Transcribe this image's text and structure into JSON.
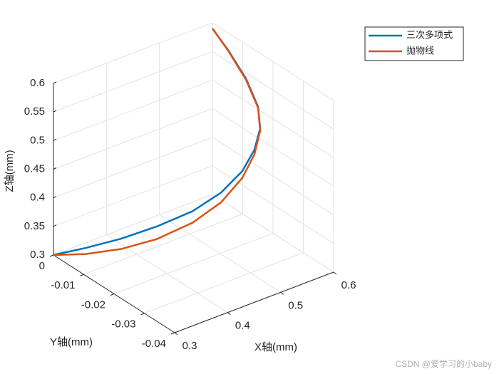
{
  "chart_data": {
    "type": "line3d",
    "xlabel": "X轴(mm)",
    "ylabel": "Y轴(mm)",
    "zlabel": "Z轴(mm)",
    "xlim": [
      0.3,
      0.6
    ],
    "ylim": [
      -0.04,
      0
    ],
    "zlim": [
      0.3,
      0.6
    ],
    "xticks": [
      0.3,
      0.4,
      0.5,
      0.6
    ],
    "yticks": [
      0,
      -0.01,
      -0.02,
      -0.03,
      -0.04
    ],
    "zticks": [
      0.3,
      0.35,
      0.4,
      0.45,
      0.5,
      0.55,
      0.6
    ],
    "grid": true,
    "legend": "top-right",
    "series": [
      {
        "name": "三次多项式",
        "color": "#0072bd",
        "x": [
          0.3,
          0.324,
          0.351,
          0.378,
          0.408,
          0.435,
          0.462,
          0.486,
          0.51,
          0.534,
          0.558,
          0.579,
          0.6
        ],
        "y": [
          0,
          -0.0064,
          -0.0134,
          -0.0205,
          -0.027,
          -0.0317,
          -0.034,
          -0.0338,
          -0.0315,
          -0.0266,
          -0.0184,
          -0.0088,
          0
        ],
        "z": [
          0.3,
          0.3256,
          0.356,
          0.392,
          0.43,
          0.469,
          0.505,
          0.533,
          0.554,
          0.567,
          0.58,
          0.59,
          0.59
        ]
      },
      {
        "name": "抛物线",
        "color": "#d95319",
        "x": [
          0.3,
          0.324,
          0.351,
          0.378,
          0.408,
          0.435,
          0.462,
          0.486,
          0.51,
          0.534,
          0.558,
          0.579,
          0.6
        ],
        "y": [
          0,
          -0.0064,
          -0.0134,
          -0.0205,
          -0.027,
          -0.0317,
          -0.034,
          -0.0338,
          -0.0315,
          -0.0266,
          -0.0184,
          -0.0088,
          0
        ],
        "z": [
          0.3,
          0.315,
          0.338,
          0.37,
          0.41,
          0.452,
          0.493,
          0.525,
          0.55,
          0.565,
          0.578,
          0.589,
          0.59
        ]
      }
    ]
  },
  "watermark": "CSDN @爱学习的小baby"
}
